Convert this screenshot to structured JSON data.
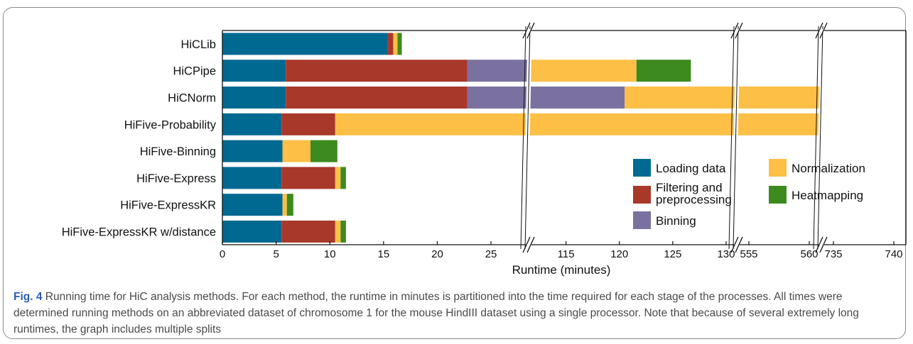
{
  "caption": {
    "label": "Fig. 4",
    "text": " Running time for HiC analysis methods. For each method, the runtime in minutes is partitioned into the time required for each stage of the processes. All times were determined running methods on an abbreviated dataset of chromosome 1 for the mouse HindIII dataset using a single processor. Note that because of several extremely long runtimes, the graph includes multiple splits"
  },
  "chart_data": {
    "type": "bar",
    "orientation": "horizontal",
    "stacked": true,
    "xlabel": "Runtime (minutes)",
    "x_axis_segments": [
      {
        "range": [
          0,
          28.5
        ],
        "ticks": [
          0,
          5,
          10,
          15,
          20,
          25
        ]
      },
      {
        "range": [
          111.5,
          131
        ],
        "ticks": [
          115,
          120,
          125,
          130
        ]
      },
      {
        "range": [
          554,
          561
        ],
        "ticks": [
          555,
          560
        ]
      },
      {
        "range": [
          734,
          741
        ],
        "ticks": [
          735,
          740
        ]
      }
    ],
    "axis_breaks_text": "//",
    "legend": {
      "placement": "lower-right inside"
    },
    "categories": [
      "HiCLib",
      "HiCPipe",
      "HiCNorm",
      "HiFive-Probability",
      "HiFive-Binning",
      "HiFive-Express",
      "HiFive-ExpressKR",
      "HiFive-ExpressKR w/distance"
    ],
    "series": [
      {
        "name": "Loading data",
        "color": "#006991",
        "values": [
          15.4,
          5.9,
          5.9,
          5.5,
          5.6,
          5.5,
          5.6,
          5.5
        ]
      },
      {
        "name": "Filtering and preprocessing",
        "color": "#a8382a",
        "values": [
          0.5,
          16.9,
          16.9,
          5.0,
          0,
          5.0,
          0,
          5.0
        ]
      },
      {
        "name": "Binning",
        "color": "#7a71a0",
        "values": [
          0,
          88.6,
          97.7,
          0,
          0,
          0,
          0,
          0
        ]
      },
      {
        "name": "Normalization",
        "color": "#fdbf45",
        "values": [
          0.4,
          10.2,
          444.6,
          721.4,
          2.6,
          0.5,
          0.4,
          0.5
        ]
      },
      {
        "name": "Heatmapping",
        "color": "#3d8a1f",
        "values": [
          0.4,
          5.1,
          0,
          0.4,
          2.5,
          0.5,
          0.6,
          0.5
        ]
      }
    ]
  }
}
